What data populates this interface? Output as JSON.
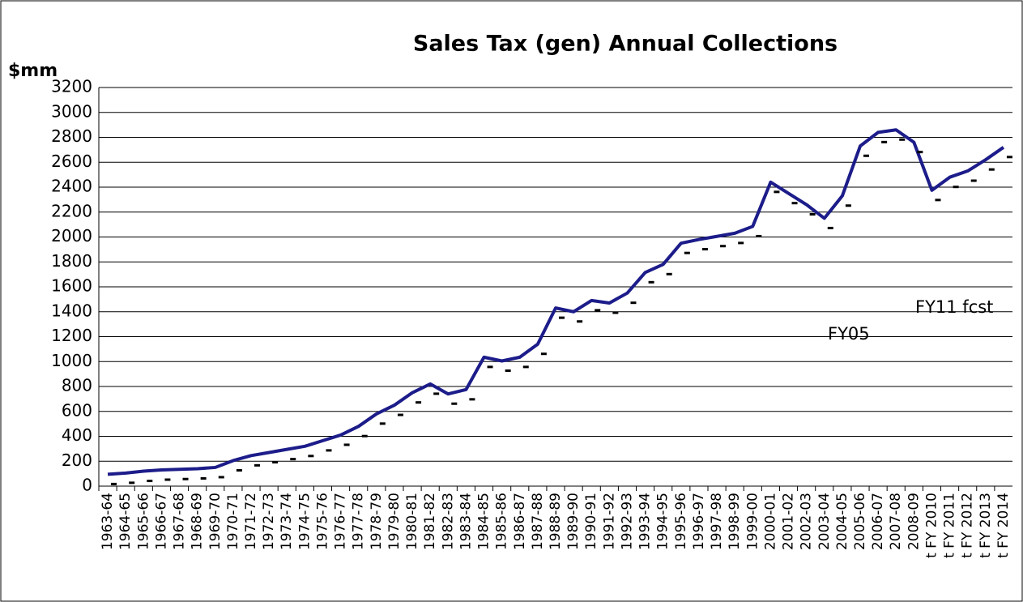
{
  "chart_data": {
    "type": "line",
    "title": "Sales Tax (gen) Annual Collections",
    "y_label": "$mm",
    "annotations": [
      "FY11 fcst",
      "FY05"
    ],
    "categories": [
      "1963-64",
      "1964-65",
      "1965-66",
      "1966-67",
      "1967-68",
      "1968-69",
      "1969-70",
      "1970-71",
      "1971-72",
      "1972-73",
      "1973-74",
      "1974-75",
      "1975-76",
      "1976-77",
      "1977-78",
      "1978-79",
      "1979-80",
      "1980-81",
      "1981-82",
      "1982-83",
      "1983-84",
      "1984-85",
      "1985-86",
      "1986-87",
      "1987-88",
      "1988-89",
      "1989-90",
      "1990-91",
      "1991-92",
      "1992-93",
      "1993-94",
      "1994-95",
      "1995-96",
      "1996-97",
      "1997-98",
      "1998-99",
      "1999-00",
      "2000-01",
      "2001-02",
      "2002-03",
      "2003-04",
      "2004-05",
      "2005-06",
      "2006-07",
      "2007-08",
      "2008-09",
      "t FY 2010",
      "t FY 2011",
      "t FY 2012",
      "t FY 2013",
      "t FY 2014"
    ],
    "series": [
      {
        "color": "#1c1c8a",
        "values": [
          95,
          105,
          120,
          130,
          135,
          140,
          150,
          205,
          245,
          270,
          295,
          320,
          365,
          410,
          480,
          580,
          650,
          750,
          820,
          740,
          775,
          1035,
          1005,
          1035,
          1140,
          1430,
          1400,
          1490,
          1470,
          1550,
          1715,
          1780,
          1950,
          1980,
          2005,
          2030,
          2085,
          2440,
          2350,
          2260,
          2150,
          2330,
          2730,
          2840,
          2860,
          2760,
          2375,
          2480,
          2530,
          2620,
          2720
        ]
      }
    ],
    "ylim": [
      0,
      3200
    ],
    "yticks": [
      0,
      200,
      400,
      600,
      800,
      1000,
      1200,
      1400,
      1600,
      1800,
      2000,
      2200,
      2400,
      2600,
      2800,
      3000,
      3200
    ],
    "grid": true
  }
}
